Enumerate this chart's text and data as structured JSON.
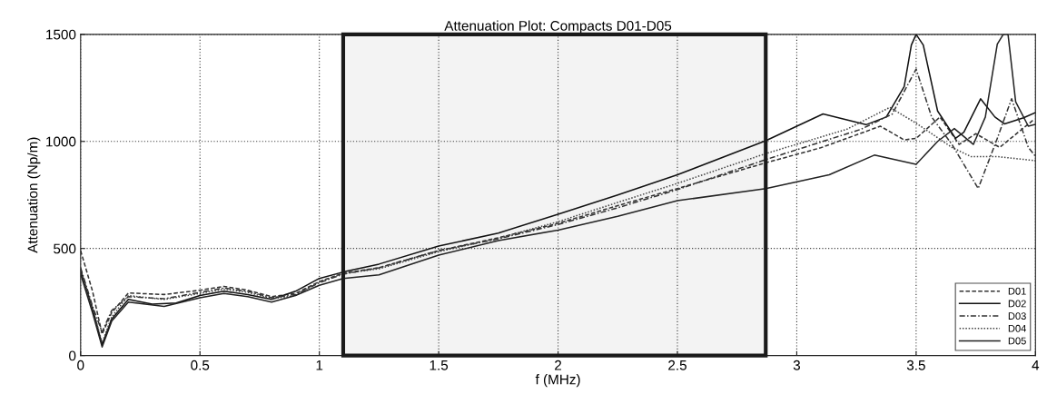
{
  "chart_data": {
    "type": "line",
    "title": "Attenuation Plot: Compacts D01-D05",
    "xlabel": "f (MHz)",
    "ylabel": "Attenuation (Np/m)",
    "xlim": [
      0,
      4
    ],
    "xticks": [
      0,
      0.5,
      1,
      1.5,
      2,
      2.5,
      3,
      3.5,
      4
    ],
    "ylim": [
      0,
      1500
    ],
    "yticks": [
      0,
      500,
      1000,
      1500
    ],
    "grid": true,
    "legend": "bottom right",
    "bands": [
      {
        "axis": "x",
        "from": 1.1,
        "to": 2.87,
        "color": "#1a1a1a"
      }
    ],
    "series": [
      {
        "name": "D01",
        "color": "#333333",
        "line_style": "dashed",
        "x": [
          0,
          0.05,
          0.09,
          0.13,
          0.2,
          0.35,
          0.5,
          0.6,
          0.7,
          0.8,
          0.9,
          1.0,
          1.1,
          1.25,
          1.5,
          1.75,
          2.0,
          2.25,
          2.5,
          2.87,
          3.1,
          3.35,
          3.45,
          3.5,
          3.6,
          3.68,
          3.75,
          3.85,
          3.99
        ],
        "values": [
          490,
          300,
          100,
          200,
          292,
          285,
          305,
          323,
          305,
          275,
          290,
          345,
          385,
          410,
          490,
          550,
          617,
          700,
          780,
          900,
          970,
          1071,
          1007,
          1014,
          1114,
          986,
          1036,
          972,
          1099
        ]
      },
      {
        "name": "D02",
        "color": "#111111",
        "line_style": "solid",
        "x": [
          0,
          0.05,
          0.09,
          0.13,
          0.2,
          0.3,
          0.4,
          0.5,
          0.6,
          0.7,
          0.8,
          0.9,
          1.0,
          1.1,
          1.25,
          1.5,
          1.75,
          2.0,
          2.25,
          2.5,
          2.87,
          3.11,
          3.29,
          3.375,
          3.45,
          3.48,
          3.5,
          3.53,
          3.59,
          3.665,
          3.7,
          3.77,
          3.83,
          3.87,
          3.95,
          4.0
        ],
        "values": [
          400,
          220,
          50,
          170,
          262,
          240,
          245,
          280,
          300,
          285,
          262,
          300,
          360,
          390,
          427,
          511,
          572,
          660,
          750,
          844,
          1003,
          1128,
          1078,
          1114,
          1256,
          1450,
          1500,
          1450,
          1142,
          1014,
          1043,
          1199,
          1114,
          1082,
          1110,
          1135
        ]
      },
      {
        "name": "D03",
        "color": "#333333",
        "line_style": "dashdot",
        "x": [
          0,
          0.05,
          0.09,
          0.13,
          0.2,
          0.35,
          0.5,
          0.6,
          0.7,
          0.8,
          0.9,
          1.0,
          1.1,
          1.25,
          1.5,
          1.75,
          2.0,
          2.25,
          2.5,
          2.87,
          3.27,
          3.4,
          3.5,
          3.565,
          3.65,
          3.76,
          3.84,
          3.9,
          3.97,
          4.0
        ],
        "values": [
          410,
          230,
          110,
          210,
          275,
          265,
          295,
          315,
          300,
          270,
          285,
          340,
          380,
          410,
          490,
          545,
          612,
          690,
          775,
          915,
          1057,
          1128,
          1338,
          1114,
          986,
          780,
          1014,
          1199,
          972,
          930
        ]
      },
      {
        "name": "D04",
        "color": "#444444",
        "line_style": "dotted",
        "x": [
          0,
          0.05,
          0.09,
          0.13,
          0.2,
          0.35,
          0.5,
          0.6,
          0.7,
          0.8,
          0.9,
          1.0,
          1.1,
          1.25,
          1.5,
          1.75,
          2.0,
          2.25,
          2.5,
          2.87,
          3.21,
          3.39,
          3.5,
          3.65,
          3.73,
          3.84,
          4.0
        ],
        "values": [
          395,
          220,
          60,
          180,
          280,
          262,
          290,
          310,
          295,
          265,
          280,
          345,
          383,
          405,
          485,
          548,
          625,
          715,
          804,
          943,
          1057,
          1159,
          1085,
          972,
          929,
          929,
          910
        ]
      },
      {
        "name": "D05",
        "color": "#222222",
        "line_style": "solid",
        "x": [
          0,
          0.05,
          0.09,
          0.13,
          0.2,
          0.35,
          0.5,
          0.6,
          0.7,
          0.8,
          0.9,
          1.0,
          1.1,
          1.25,
          1.5,
          1.75,
          2.0,
          2.25,
          2.5,
          2.87,
          3.136,
          3.325,
          3.5,
          3.59,
          3.66,
          3.74,
          3.79,
          3.84,
          3.865,
          3.885,
          3.917,
          3.97,
          4.0
        ],
        "values": [
          380,
          200,
          40,
          160,
          250,
          229,
          270,
          290,
          275,
          250,
          280,
          328,
          360,
          377,
          469,
          537,
          586,
          650,
          723,
          780,
          844,
          936,
          893,
          1000,
          1060,
          986,
          1114,
          1454,
          1500,
          1500,
          1185,
          1071,
          1080
        ]
      }
    ]
  }
}
